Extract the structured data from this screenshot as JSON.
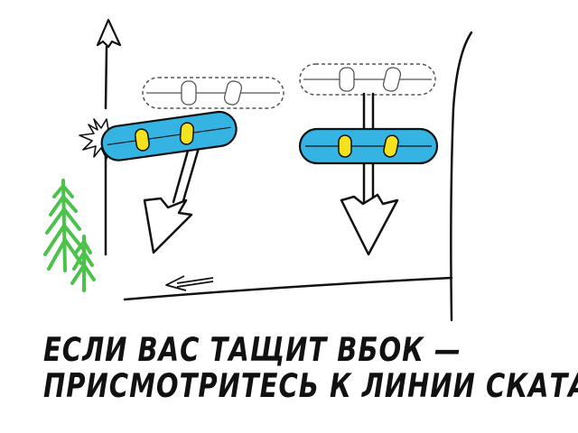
{
  "caption": {
    "line1": "ЕСЛИ ВАС ТАЩИТ ВБОК —",
    "line2": "ПРИСМОТРИТЕСЬ К ЛИНИИ СКАТА"
  },
  "colors": {
    "board": "#35b3e3",
    "binding": "#f5e21e",
    "tree": "#4bc24a",
    "ink": "#111111",
    "ghost_outline": "#555555"
  },
  "icons": [
    "up-arrow-icon",
    "impact-burst-icon",
    "pine-tree-icon",
    "down-arrow-icon",
    "small-left-arrow-icon"
  ]
}
